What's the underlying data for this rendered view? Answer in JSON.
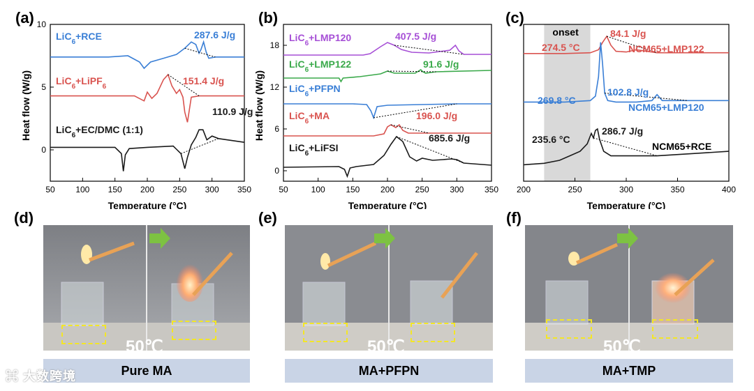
{
  "panel_labels": [
    "(a)",
    "(b)",
    "(c)",
    "(d)",
    "(e)",
    "(f)"
  ],
  "x_axis_label": "Temperature (°C)",
  "y_axis_label": "Heat flow (W/g)",
  "chart_data": [
    {
      "type": "line",
      "panel": "(a)",
      "xlabel": "Temperature (°C)",
      "ylabel": "Heat flow (W/g)",
      "xlim": [
        50,
        350
      ],
      "ylim": [
        -2.5,
        10
      ],
      "xticks": [
        "50",
        "100",
        "150",
        "200",
        "250",
        "300",
        "350"
      ],
      "yticks": [
        "0",
        "5",
        "10"
      ],
      "series": [
        {
          "name": "LiC6+RCE",
          "color": "#3a7fd6",
          "annotation": "287.6 J/g",
          "x": [
            50,
            140,
            170,
            188,
            195,
            205,
            225,
            245,
            258,
            268,
            275,
            280,
            283,
            287,
            291,
            295,
            305,
            350
          ],
          "y": [
            7.4,
            7.4,
            7.5,
            7.0,
            6.5,
            7.0,
            7.3,
            7.6,
            8.1,
            8.6,
            8.4,
            7.7,
            8.0,
            8.6,
            7.8,
            7.3,
            7.4,
            7.4
          ]
        },
        {
          "name": "LiC6+LiPF6",
          "color": "#d9534f",
          "annotation": "151.4 J/g",
          "x": [
            50,
            180,
            195,
            200,
            207,
            215,
            225,
            232,
            238,
            245,
            250,
            255,
            258,
            262,
            268,
            280,
            350
          ],
          "y": [
            4.3,
            4.3,
            3.9,
            4.6,
            4.1,
            4.5,
            5.6,
            6.0,
            5.1,
            4.5,
            4.8,
            4.2,
            3.0,
            2.2,
            4.2,
            4.3,
            4.3
          ]
        },
        {
          "name": "LiC6+EC/DMC (1:1)",
          "color": "#1a1a1a",
          "annotation": "110.9 J/g",
          "x": [
            50,
            150,
            160,
            163,
            166,
            172,
            200,
            240,
            252,
            258,
            262,
            268,
            275,
            280,
            286,
            292,
            300,
            310,
            350
          ],
          "y": [
            0.2,
            0.2,
            -0.3,
            -1.7,
            -0.4,
            0.1,
            0.2,
            0.3,
            -0.3,
            -1.5,
            -0.6,
            0.4,
            1.0,
            1.6,
            1.6,
            0.8,
            1.1,
            0.9,
            0.6
          ]
        }
      ]
    },
    {
      "type": "line",
      "panel": "(b)",
      "xlabel": "Temperature (°C)",
      "ylabel": "Heat flow (W/g)",
      "xlim": [
        50,
        350
      ],
      "ylim": [
        -1.5,
        21
      ],
      "xticks": [
        "50",
        "100",
        "150",
        "200",
        "250",
        "300",
        "350"
      ],
      "yticks": [
        "0",
        "6",
        "12",
        "18"
      ],
      "series": [
        {
          "name": "LiC6+LMP120",
          "color": "#a64fd6",
          "annotation": "407.5 J/g",
          "x": [
            50,
            150,
            165,
            175,
            190,
            200,
            210,
            220,
            235,
            260,
            290,
            298,
            303,
            310,
            350
          ],
          "y": [
            16.6,
            16.6,
            16.6,
            16.8,
            17.8,
            18.4,
            18.0,
            17.4,
            17.0,
            16.9,
            17.3,
            18.0,
            17.2,
            16.7,
            16.7
          ]
        },
        {
          "name": "LiC6+LMP122",
          "color": "#3aa94a",
          "annotation": "91.6 J/g",
          "x": [
            50,
            130,
            133,
            136,
            160,
            190,
            200,
            210,
            240,
            248,
            251,
            255,
            270,
            350
          ],
          "y": [
            13.3,
            13.3,
            12.8,
            13.3,
            13.5,
            13.9,
            14.3,
            14.0,
            14.0,
            14.5,
            14.2,
            14.0,
            14.2,
            14.4
          ]
        },
        {
          "name": "LiC6+PFPN",
          "color": "#3a7fd6",
          "annotation": "",
          "x": [
            50,
            150,
            170,
            176,
            180,
            185,
            200,
            250,
            300,
            350
          ],
          "y": [
            9.6,
            9.6,
            9.5,
            8.6,
            7.6,
            9.2,
            9.4,
            9.5,
            9.6,
            9.6
          ]
        },
        {
          "name": "LiC6+MA",
          "color": "#d9534f",
          "annotation": "196.0 J/g",
          "x": [
            50,
            150,
            180,
            195,
            200,
            205,
            212,
            217,
            222,
            230,
            260,
            350
          ],
          "y": [
            5.0,
            5.0,
            5.0,
            5.3,
            6.3,
            6.6,
            6.2,
            6.6,
            5.8,
            5.4,
            5.4,
            5.4
          ]
        },
        {
          "name": "LiC6+LiFSI",
          "color": "#1a1a1a",
          "annotation": "685.6 J/g",
          "x": [
            50,
            130,
            138,
            142,
            146,
            155,
            180,
            195,
            205,
            213,
            222,
            232,
            242,
            250,
            265,
            280,
            292,
            300,
            310,
            350
          ],
          "y": [
            0.5,
            0.6,
            0.2,
            -0.8,
            0.4,
            0.6,
            0.9,
            2.2,
            3.8,
            4.9,
            4.2,
            2.0,
            1.4,
            1.8,
            1.5,
            1.6,
            1.7,
            1.6,
            1.1,
            0.8
          ]
        }
      ]
    },
    {
      "type": "line",
      "panel": "(c)",
      "xlabel": "Temperature (°C)",
      "ylabel": "",
      "xlim": [
        200,
        400
      ],
      "ylim": [
        -0.5,
        10
      ],
      "xticks": [
        "200",
        "250",
        "300",
        "350",
        "400"
      ],
      "yticks": [],
      "shaded_band": {
        "x": [
          220,
          265
        ],
        "label": "onset"
      },
      "series": [
        {
          "name": "NCM65+LMP122",
          "color": "#d9534f",
          "annotation": "84.1 J/g",
          "onset": "274.5 °C",
          "x": [
            200,
            240,
            265,
            273,
            277,
            281,
            285,
            290,
            300,
            310,
            320,
            330,
            400
          ],
          "y": [
            8.05,
            8.05,
            8.1,
            8.3,
            8.8,
            9.2,
            8.6,
            8.2,
            8.15,
            8.3,
            8.2,
            8.1,
            8.1
          ]
        },
        {
          "name": "NCM65+LMP120",
          "color": "#3a7fd6",
          "annotation": "102.8 J/g",
          "onset": "269.8 °C",
          "x": [
            200,
            240,
            265,
            270,
            273,
            275,
            277,
            279,
            282,
            290,
            310,
            325,
            330,
            335,
            360,
            400
          ],
          "y": [
            4.8,
            4.8,
            4.9,
            5.2,
            6.5,
            8.8,
            7.3,
            5.4,
            4.9,
            4.8,
            4.8,
            4.9,
            5.3,
            4.9,
            4.9,
            4.9
          ]
        },
        {
          "name": "NCM65+RCE",
          "color": "#1a1a1a",
          "annotation": "286.7 J/g",
          "onset": "235.6 °C",
          "x": [
            200,
            220,
            235,
            245,
            255,
            262,
            266,
            268,
            270,
            272,
            274,
            278,
            285,
            300,
            330,
            400
          ],
          "y": [
            0.6,
            0.7,
            0.9,
            1.2,
            1.5,
            2.0,
            2.7,
            2.4,
            2.9,
            3.0,
            2.3,
            1.5,
            1.2,
            1.2,
            1.2,
            1.5
          ]
        }
      ]
    }
  ],
  "photos": [
    {
      "panel": "(d)",
      "temperature": "50℃",
      "caption": "Pure MA"
    },
    {
      "panel": "(e)",
      "temperature": "50℃",
      "caption": "MA+PFPN"
    },
    {
      "panel": "(f)",
      "temperature": "50℃",
      "caption": "MA+TMP"
    }
  ],
  "colors": {
    "arrow": "#7dc242",
    "dashed_box": "#f3e626",
    "caption_bg": "#c9d4e6",
    "onset_band": "#d9d9d9"
  }
}
